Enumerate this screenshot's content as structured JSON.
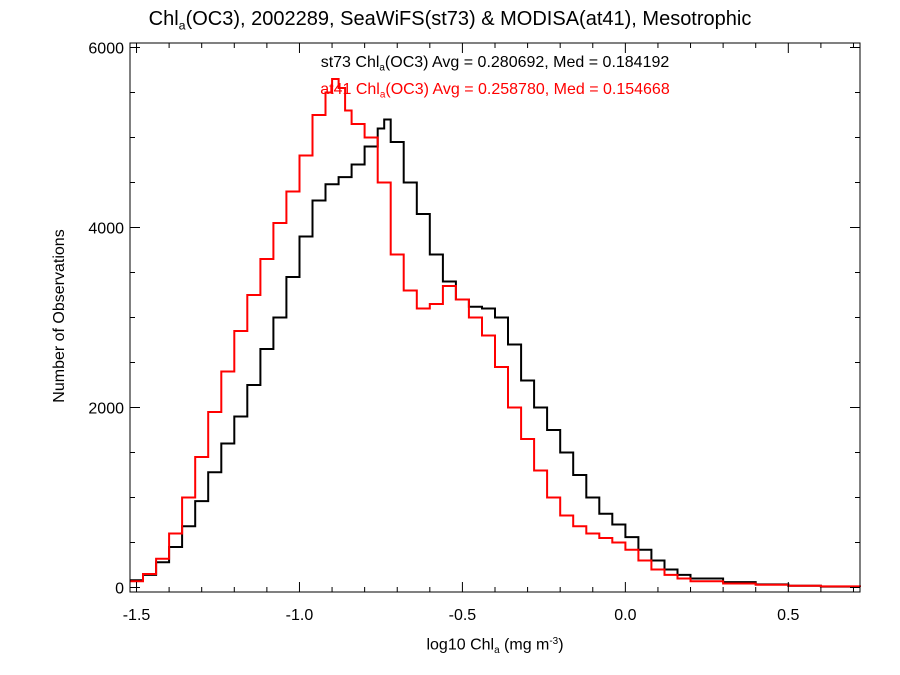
{
  "title": {
    "pre": "Chl",
    "sub": "a",
    "post": "(OC3), 2002289, SeaWiFS(st73) & MODISA(at41), Mesotrophic"
  },
  "annotations": [
    {
      "pre": "st73 Chl",
      "sub": "a",
      "post": "(OC3) Avg = 0.280692, Med = 0.184192",
      "color": "#000000"
    },
    {
      "pre": "at41 Chl",
      "sub": "a",
      "post": "(OC3) Avg = 0.258780, Med = 0.154668",
      "color": "#ff0000"
    }
  ],
  "xlabel": {
    "pre": "log10 Chl",
    "sub": "a",
    "mid": " (mg m",
    "sup": "-3",
    "post": ")"
  },
  "ylabel": "Number of Observations",
  "chart_data": {
    "type": "line",
    "step": true,
    "xlim": [
      -1.52,
      0.72
    ],
    "ylim": [
      -50,
      6050
    ],
    "xticks": [
      -1.5,
      -1.0,
      -0.5,
      0.0,
      0.5
    ],
    "xtick_labels": [
      "-1.5",
      "-1.0",
      "-0.5",
      "0.0",
      "0.5"
    ],
    "yticks": [
      0,
      2000,
      4000,
      6000
    ],
    "ytick_labels": [
      "0",
      "2000",
      "4000",
      "6000"
    ],
    "grid": false,
    "series": [
      {
        "name": "st73",
        "color": "#000000",
        "x": [
          -1.52,
          -1.48,
          -1.44,
          -1.4,
          -1.36,
          -1.32,
          -1.28,
          -1.24,
          -1.2,
          -1.16,
          -1.12,
          -1.08,
          -1.04,
          -1.0,
          -0.96,
          -0.92,
          -0.88,
          -0.84,
          -0.8,
          -0.76,
          -0.74,
          -0.72,
          -0.68,
          -0.64,
          -0.6,
          -0.56,
          -0.52,
          -0.48,
          -0.44,
          -0.4,
          -0.36,
          -0.32,
          -0.28,
          -0.24,
          -0.2,
          -0.16,
          -0.12,
          -0.08,
          -0.04,
          0.0,
          0.04,
          0.08,
          0.12,
          0.16,
          0.2,
          0.3,
          0.4,
          0.5,
          0.6,
          0.72
        ],
        "y": [
          80,
          140,
          280,
          450,
          680,
          960,
          1280,
          1600,
          1900,
          2250,
          2650,
          3000,
          3450,
          3900,
          4300,
          4480,
          4560,
          4700,
          4900,
          5100,
          5200,
          4950,
          4500,
          4150,
          3700,
          3400,
          3200,
          3120,
          3100,
          3000,
          2700,
          2300,
          2000,
          1750,
          1500,
          1250,
          1000,
          820,
          700,
          560,
          420,
          300,
          200,
          140,
          100,
          60,
          35,
          20,
          10,
          5
        ]
      },
      {
        "name": "at41",
        "color": "#ff0000",
        "x": [
          -1.52,
          -1.48,
          -1.44,
          -1.4,
          -1.36,
          -1.32,
          -1.28,
          -1.24,
          -1.2,
          -1.16,
          -1.12,
          -1.08,
          -1.04,
          -1.0,
          -0.96,
          -0.92,
          -0.9,
          -0.88,
          -0.86,
          -0.84,
          -0.8,
          -0.76,
          -0.72,
          -0.68,
          -0.64,
          -0.6,
          -0.56,
          -0.52,
          -0.48,
          -0.44,
          -0.4,
          -0.36,
          -0.32,
          -0.28,
          -0.24,
          -0.2,
          -0.16,
          -0.12,
          -0.08,
          -0.04,
          0.0,
          0.04,
          0.08,
          0.12,
          0.16,
          0.2,
          0.3,
          0.4,
          0.5,
          0.6,
          0.72
        ],
        "y": [
          70,
          150,
          320,
          600,
          1000,
          1450,
          1950,
          2400,
          2850,
          3250,
          3650,
          4050,
          4400,
          4800,
          5250,
          5500,
          5650,
          5550,
          5300,
          5150,
          5000,
          4500,
          3700,
          3300,
          3100,
          3150,
          3350,
          3200,
          3000,
          2800,
          2450,
          2000,
          1650,
          1300,
          1000,
          800,
          680,
          600,
          550,
          500,
          420,
          300,
          200,
          140,
          100,
          70,
          45,
          30,
          20,
          12,
          6
        ]
      }
    ]
  }
}
